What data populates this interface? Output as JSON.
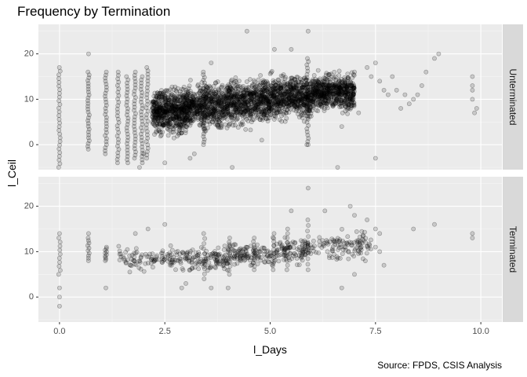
{
  "chart_data": {
    "type": "scatter",
    "title": "Frequency by Termination",
    "xlabel": "l_Days",
    "ylabel": "l_Ceil",
    "caption": "Source: FPDS, CSIS Analysis",
    "xlim": [
      -0.5,
      10.5
    ],
    "x_ticks": [
      0.0,
      2.5,
      5.0,
      7.5,
      10.0
    ],
    "x_tick_labels": [
      "0.0",
      "2.5",
      "5.0",
      "7.5",
      "10.0"
    ],
    "y_ticks": [
      0,
      10,
      20
    ],
    "y_tick_labels": [
      "0",
      "10",
      "20"
    ],
    "grid": true,
    "point_color": "#000000",
    "point_alpha": 0.15,
    "panel_background": "#EBEBEB",
    "strip_background": "#D9D9D9",
    "panels": [
      {
        "label": "Unterminated",
        "ylim": [
          -5.5,
          26.5
        ],
        "columns": [
          {
            "x": 0.0,
            "y_min": -5,
            "y_max": 17
          },
          {
            "x": 0.69,
            "y_min": -1,
            "y_max": 16
          },
          {
            "x": 1.1,
            "y_min": -2,
            "y_max": 16
          },
          {
            "x": 1.39,
            "y_min": -4,
            "y_max": 16
          },
          {
            "x": 1.61,
            "y_min": -4,
            "y_max": 15
          },
          {
            "x": 1.79,
            "y_min": -3,
            "y_max": 16
          },
          {
            "x": 1.95,
            "y_min": -4,
            "y_max": 15
          },
          {
            "x": 2.08,
            "y_min": -3,
            "y_max": 17
          },
          {
            "x": 3.43,
            "y_min": 0,
            "y_max": 16
          },
          {
            "x": 5.89,
            "y_min": 0,
            "y_max": 19
          }
        ],
        "density_bands": [
          {
            "x_from": 2.2,
            "x_to": 3.0,
            "y_min": 1,
            "y_max": 14
          },
          {
            "x_from": 3.0,
            "x_to": 4.0,
            "y_min": 2,
            "y_max": 15
          },
          {
            "x_from": 4.0,
            "x_to": 5.0,
            "y_min": 3,
            "y_max": 16
          },
          {
            "x_from": 5.0,
            "x_to": 6.0,
            "y_min": 4,
            "y_max": 17
          },
          {
            "x_from": 6.0,
            "x_to": 7.0,
            "y_min": 6,
            "y_max": 17
          }
        ],
        "outliers": [
          {
            "x": 0.69,
            "y": 20
          },
          {
            "x": 4.45,
            "y": 25
          },
          {
            "x": 5.9,
            "y": 25
          },
          {
            "x": 5.1,
            "y": 21
          },
          {
            "x": 5.5,
            "y": 21
          },
          {
            "x": 3.6,
            "y": 18
          },
          {
            "x": 7.3,
            "y": 17
          },
          {
            "x": 7.5,
            "y": 18
          },
          {
            "x": 7.0,
            "y": 16
          },
          {
            "x": 7.4,
            "y": 15
          },
          {
            "x": 7.6,
            "y": 14
          },
          {
            "x": 7.7,
            "y": 12
          },
          {
            "x": 7.8,
            "y": 11
          },
          {
            "x": 8.0,
            "y": 12
          },
          {
            "x": 8.2,
            "y": 11
          },
          {
            "x": 8.4,
            "y": 10
          },
          {
            "x": 8.3,
            "y": 9
          },
          {
            "x": 8.5,
            "y": 11
          },
          {
            "x": 8.1,
            "y": 8
          },
          {
            "x": 8.7,
            "y": 16
          },
          {
            "x": 8.9,
            "y": 19
          },
          {
            "x": 9.0,
            "y": 20
          },
          {
            "x": 8.6,
            "y": 13
          },
          {
            "x": 7.9,
            "y": 15
          },
          {
            "x": 9.8,
            "y": 15
          },
          {
            "x": 9.8,
            "y": 13
          },
          {
            "x": 9.8,
            "y": 12
          },
          {
            "x": 9.8,
            "y": 10
          },
          {
            "x": 9.9,
            "y": 8
          },
          {
            "x": 9.85,
            "y": 7
          },
          {
            "x": 7.5,
            "y": -3
          },
          {
            "x": 6.6,
            "y": -5
          },
          {
            "x": 4.1,
            "y": -5
          },
          {
            "x": 2.5,
            "y": -4
          },
          {
            "x": 1.9,
            "y": -5
          },
          {
            "x": 3.1,
            "y": -3
          },
          {
            "x": 5.9,
            "y": 0
          },
          {
            "x": 2.0,
            "y": -2
          },
          {
            "x": 3.2,
            "y": -2
          },
          {
            "x": 4.8,
            "y": 1
          },
          {
            "x": 6.7,
            "y": 4
          },
          {
            "x": 7.1,
            "y": 7
          }
        ]
      },
      {
        "label": "Terminated",
        "ylim": [
          -5.5,
          26.5
        ],
        "columns": [
          {
            "x": 0.0,
            "y_min": 5,
            "y_max": 13
          },
          {
            "x": 0.69,
            "y_min": 8,
            "y_max": 13
          },
          {
            "x": 1.1,
            "y_min": 8,
            "y_max": 11
          },
          {
            "x": 3.43,
            "y_min": 4,
            "y_max": 14
          },
          {
            "x": 4.04,
            "y_min": 5,
            "y_max": 13
          },
          {
            "x": 4.61,
            "y_min": 6,
            "y_max": 13
          },
          {
            "x": 5.08,
            "y_min": 6,
            "y_max": 14
          },
          {
            "x": 5.41,
            "y_min": 6,
            "y_max": 15
          },
          {
            "x": 5.89,
            "y_min": 6,
            "y_max": 17
          }
        ],
        "density_bands": [
          {
            "x_from": 1.4,
            "x_to": 3.0,
            "y_min": 5,
            "y_max": 12
          },
          {
            "x_from": 3.0,
            "x_to": 4.0,
            "y_min": 5,
            "y_max": 12
          },
          {
            "x_from": 4.0,
            "x_to": 5.0,
            "y_min": 6,
            "y_max": 13
          },
          {
            "x_from": 5.0,
            "x_to": 6.0,
            "y_min": 6,
            "y_max": 14
          },
          {
            "x_from": 6.0,
            "x_to": 7.4,
            "y_min": 7,
            "y_max": 16
          }
        ],
        "outliers": [
          {
            "x": 0.0,
            "y": 14
          },
          {
            "x": 0.0,
            "y": 2
          },
          {
            "x": 0.0,
            "y": 0
          },
          {
            "x": 0.0,
            "y": -2
          },
          {
            "x": 0.69,
            "y": 14
          },
          {
            "x": 1.1,
            "y": 2
          },
          {
            "x": 1.8,
            "y": 14
          },
          {
            "x": 2.1,
            "y": 15
          },
          {
            "x": 2.5,
            "y": 16
          },
          {
            "x": 3.0,
            "y": 3
          },
          {
            "x": 3.6,
            "y": 2
          },
          {
            "x": 2.9,
            "y": 2
          },
          {
            "x": 5.5,
            "y": 19
          },
          {
            "x": 5.9,
            "y": 24
          },
          {
            "x": 6.3,
            "y": 19
          },
          {
            "x": 6.9,
            "y": 20
          },
          {
            "x": 7.0,
            "y": 18
          },
          {
            "x": 7.5,
            "y": 15
          },
          {
            "x": 7.6,
            "y": 14
          },
          {
            "x": 7.6,
            "y": 10
          },
          {
            "x": 7.5,
            "y": 11
          },
          {
            "x": 7.7,
            "y": 7
          },
          {
            "x": 8.4,
            "y": 15
          },
          {
            "x": 8.9,
            "y": 16
          },
          {
            "x": 9.8,
            "y": 14
          },
          {
            "x": 9.8,
            "y": 13
          },
          {
            "x": 4.0,
            "y": 2
          },
          {
            "x": 6.7,
            "y": 2
          },
          {
            "x": 7.0,
            "y": 5
          },
          {
            "x": 7.3,
            "y": 17
          }
        ]
      }
    ]
  }
}
